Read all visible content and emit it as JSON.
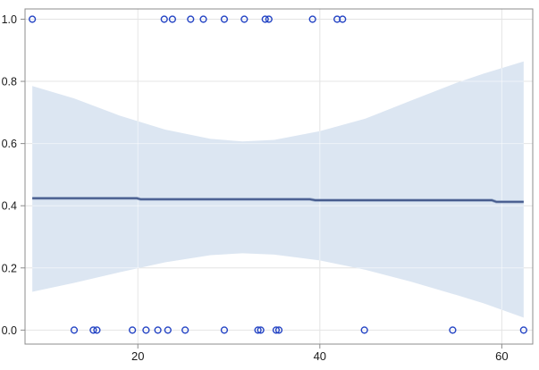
{
  "chart_data": {
    "type": "scatter",
    "xlabel": "",
    "ylabel": "",
    "xlim": [
      7.6,
      63.4
    ],
    "ylim": [
      -0.045,
      1.033
    ],
    "grid": true,
    "legend": false,
    "x_ticks": {
      "values": [
        20,
        40,
        60
      ],
      "labels": [
        "20",
        "40",
        "60"
      ]
    },
    "y_ticks": {
      "values": [
        1.0,
        0.8,
        0.6,
        0.4,
        0.2,
        0.0
      ],
      "labels": [
        "1.0",
        "0.8",
        "0.6",
        "0.4",
        "0.2",
        "0.0"
      ]
    },
    "series": [
      {
        "name": "observations-at-1",
        "type": "scatter",
        "marker": "open-circle",
        "x": [
          8.4,
          22.9,
          23.8,
          25.8,
          27.2,
          29.5,
          31.7,
          34.0,
          34.4,
          39.2,
          41.9,
          42.5
        ],
        "y": [
          1,
          1,
          1,
          1,
          1,
          1,
          1,
          1,
          1,
          1,
          1,
          1
        ]
      },
      {
        "name": "observations-at-0",
        "type": "scatter",
        "marker": "open-circle",
        "x": [
          13.0,
          15.1,
          15.5,
          19.4,
          20.9,
          22.2,
          23.3,
          25.2,
          29.5,
          33.2,
          33.5,
          35.2,
          35.5,
          44.9,
          54.6,
          62.4
        ],
        "y": [
          0,
          0,
          0,
          0,
          0,
          0,
          0,
          0,
          0,
          0,
          0,
          0,
          0,
          0,
          0,
          0
        ]
      },
      {
        "name": "fit-line",
        "type": "line",
        "points": [
          [
            8.4,
            0.424
          ],
          [
            19.9,
            0.424
          ],
          [
            20.3,
            0.4208
          ],
          [
            38.9,
            0.4208
          ],
          [
            39.5,
            0.4177
          ],
          [
            58.9,
            0.4177
          ],
          [
            59.4,
            0.4125
          ],
          [
            62.4,
            0.4125
          ]
        ]
      },
      {
        "name": "confidence-band",
        "type": "band",
        "x": [
          8.4,
          13,
          18,
          23,
          28,
          31.5,
          35,
          40,
          45,
          50,
          55,
          58,
          62.4
        ],
        "upper": [
          0.785,
          0.745,
          0.69,
          0.645,
          0.615,
          0.607,
          0.612,
          0.64,
          0.68,
          0.738,
          0.795,
          0.825,
          0.864
        ],
        "lower": [
          0.123,
          0.152,
          0.186,
          0.218,
          0.241,
          0.247,
          0.243,
          0.224,
          0.194,
          0.156,
          0.113,
          0.086,
          0.04
        ]
      }
    ],
    "colors": {
      "marker_stroke": "#2444c4",
      "fit_line_core": "#44598c",
      "fit_line_halo": "#93a7c7",
      "band_fill": "#dce6f2",
      "gridline": "#e4e4e4",
      "frame": "#8c8c8c",
      "tick": "#8c8c8c",
      "background": "#ffffff",
      "label": "#1a1a1a"
    }
  }
}
